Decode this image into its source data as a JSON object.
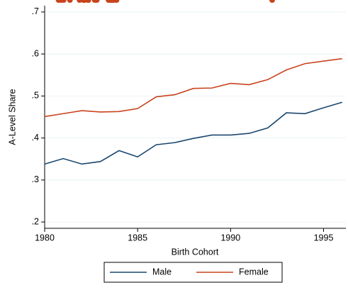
{
  "chart_data": {
    "type": "line",
    "x_label": "Birth Cohort",
    "y_label": "A-Level Share",
    "x": [
      1980,
      1981,
      1982,
      1983,
      1984,
      1985,
      1986,
      1987,
      1988,
      1989,
      1990,
      1991,
      1992,
      1993,
      1994,
      1995,
      1996
    ],
    "series": [
      {
        "name": "Male",
        "color": "#1a476f",
        "marker": "diamond",
        "values": [
          0.338,
          0.351,
          0.338,
          0.344,
          0.37,
          0.355,
          0.384,
          0.389,
          0.399,
          0.407,
          0.407,
          0.411,
          0.424,
          0.46,
          0.458,
          0.472,
          0.485
        ]
      },
      {
        "name": "Female",
        "color": "#c9431c",
        "marker": "circle",
        "values": [
          0.451,
          0.458,
          0.465,
          0.462,
          0.463,
          0.47,
          0.498,
          0.503,
          0.518,
          0.519,
          0.53,
          0.527,
          0.539,
          0.562,
          0.577,
          0.583,
          0.589
        ]
      }
    ],
    "xlim": [
      1980,
      1996.2
    ],
    "xticks": [
      1980,
      1985,
      1990,
      1995
    ],
    "ylim": [
      0.185,
      0.715
    ],
    "yticks": [
      {
        "value": 0.2,
        "label": ".2"
      },
      {
        "value": 0.3,
        "label": ".3"
      },
      {
        "value": 0.4,
        "label": ".4"
      },
      {
        "value": 0.5,
        "label": ".5"
      },
      {
        "value": 0.6,
        "label": ".6"
      },
      {
        "value": 0.7,
        "label": ".7"
      }
    ],
    "grid": true,
    "legend": "bottom"
  }
}
